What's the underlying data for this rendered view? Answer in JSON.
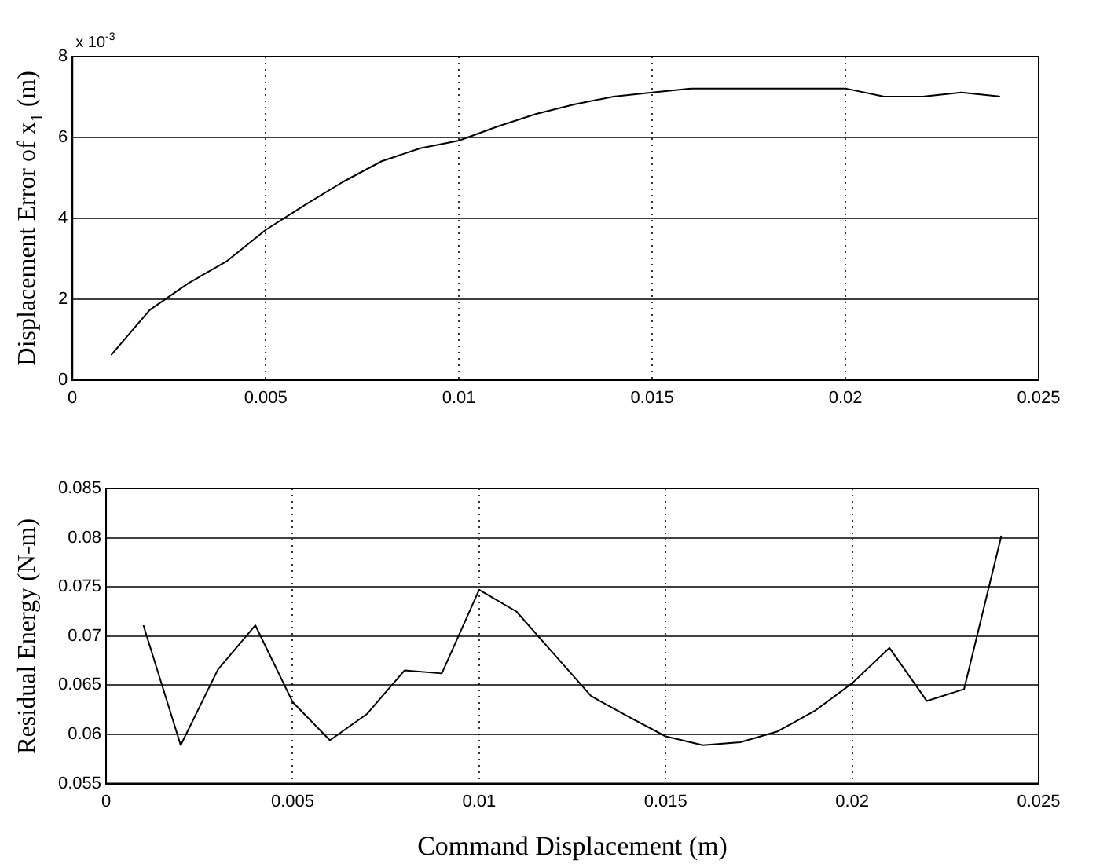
{
  "chart_data": [
    {
      "type": "line",
      "ylabel": "Displacement Error of x$_{1}$ (m)",
      "annotations": [
        "x 10$^{-3}$"
      ],
      "x": [
        0.001,
        0.002,
        0.003,
        0.004,
        0.005,
        0.006,
        0.007,
        0.008,
        0.009,
        0.01,
        0.011,
        0.012,
        0.013,
        0.014,
        0.015,
        0.016,
        0.017,
        0.018,
        0.019,
        0.02,
        0.021,
        0.022,
        0.023,
        0.024
      ],
      "series": [
        {
          "color": "#000000",
          "values": [
            0.61,
            1.73,
            2.39,
            2.94,
            3.71,
            4.32,
            4.9,
            5.41,
            5.73,
            5.92,
            6.27,
            6.58,
            6.82,
            7.01,
            7.11,
            7.21,
            7.21,
            7.21,
            7.21,
            7.21,
            7.01,
            7.01,
            7.11,
            7.01
          ]
        }
      ],
      "xlim": [
        0,
        0.025
      ],
      "xticks": [
        0,
        0.005,
        0.01,
        0.015,
        0.02,
        0.025
      ],
      "ylim": [
        0,
        8
      ],
      "yticks": [
        0,
        2,
        4,
        6,
        8
      ],
      "grid": true,
      "legend": false,
      "marker": "none",
      "line_style": "solid"
    },
    {
      "type": "line",
      "xlabel": "Command Displacement (m)",
      "ylabel": "Residual Energy (N-m)",
      "x": [
        0.001,
        0.002,
        0.003,
        0.004,
        0.005,
        0.006,
        0.007,
        0.008,
        0.009,
        0.01,
        0.011,
        0.012,
        0.013,
        0.014,
        0.015,
        0.016,
        0.017,
        0.018,
        0.019,
        0.02,
        0.021,
        0.022,
        0.023,
        0.024
      ],
      "series": [
        {
          "color": "#000000",
          "values": [
            0.0711,
            0.0589,
            0.0666,
            0.0711,
            0.0633,
            0.0594,
            0.0621,
            0.0665,
            0.0662,
            0.0747,
            0.0725,
            0.0682,
            0.0639,
            0.0618,
            0.0598,
            0.0589,
            0.0592,
            0.0603,
            0.0624,
            0.0652,
            0.0688,
            0.0634,
            0.0646,
            0.0802
          ]
        }
      ],
      "xlim": [
        0,
        0.025
      ],
      "xticks": [
        0,
        0.005,
        0.01,
        0.015,
        0.02,
        0.025
      ],
      "ylim": [
        0.055,
        0.085
      ],
      "yticks": [
        0.055,
        0.06,
        0.065,
        0.07,
        0.075,
        0.08,
        0.085
      ],
      "grid": true,
      "legend": false,
      "marker": "none",
      "line_style": "solid"
    }
  ]
}
